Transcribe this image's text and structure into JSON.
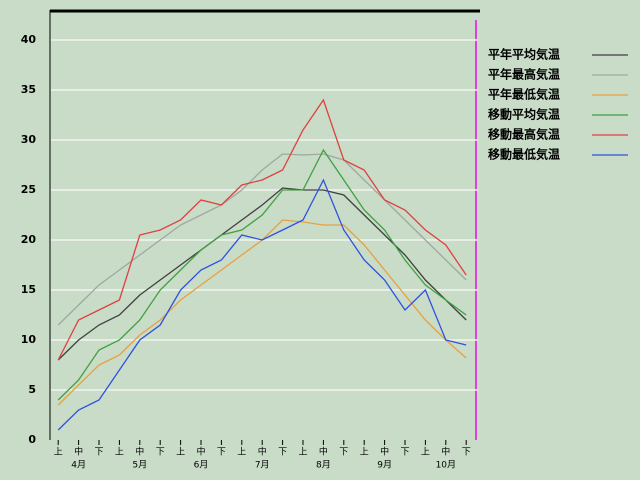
{
  "chart_data": {
    "type": "line",
    "categories": [
      "上",
      "中",
      "下",
      "上",
      "中",
      "下",
      "上",
      "中",
      "下",
      "上",
      "中",
      "下",
      "上",
      "中",
      "下",
      "上",
      "中",
      "下",
      "上",
      "中",
      "下"
    ],
    "months": [
      "4月",
      "5月",
      "6月",
      "7月",
      "8月",
      "9月",
      "10月"
    ],
    "ylim": [
      0,
      43
    ],
    "yticks": [
      0,
      5,
      10,
      15,
      20,
      25,
      30,
      35,
      40
    ],
    "grid": true,
    "legend": "right",
    "series": [
      {
        "name": "平年平均気温",
        "color": "#404040",
        "values": [
          8,
          10,
          11.5,
          12.5,
          14.5,
          16,
          17.5,
          19,
          20.5,
          22,
          23.5,
          25.2,
          25,
          25,
          24.5,
          22.5,
          20.5,
          18.5,
          16,
          14,
          12
        ]
      },
      {
        "name": "平年最高気温",
        "color": "#a0a8a0",
        "values": [
          11.5,
          13.5,
          15.5,
          17,
          18.5,
          20,
          21.5,
          22.5,
          23.5,
          25,
          27,
          28.6,
          28.5,
          28.6,
          28,
          26,
          24,
          22,
          20,
          18,
          16
        ]
      },
      {
        "name": "平年最低気温",
        "color": "#e8a040",
        "values": [
          3.5,
          5.5,
          7.5,
          8.5,
          10.5,
          12,
          14,
          15.5,
          17,
          18.5,
          20,
          22,
          21.8,
          21.5,
          21.5,
          19.5,
          17,
          14.5,
          12,
          10,
          8.2
        ]
      },
      {
        "name": "移動平均気温",
        "color": "#40a040",
        "values": [
          4,
          6,
          9,
          10,
          12,
          15,
          17,
          19,
          20.5,
          21,
          22.5,
          25,
          25,
          29,
          26,
          23,
          21,
          18,
          15.5,
          14,
          12.5
        ]
      },
      {
        "name": "移動最高気温",
        "color": "#e04040",
        "values": [
          8,
          12,
          13,
          14,
          20.5,
          21,
          22,
          24,
          23.5,
          25.5,
          26,
          27,
          31,
          34,
          28,
          27,
          24,
          23,
          21,
          19.5,
          16.5
        ]
      },
      {
        "name": "移動最低気温",
        "color": "#3050e0",
        "values": [
          1,
          3,
          4,
          7,
          10,
          11.5,
          15,
          17,
          18,
          20.5,
          20,
          21,
          22,
          26,
          21,
          18,
          16,
          13,
          15,
          10,
          9.5
        ]
      }
    ]
  }
}
